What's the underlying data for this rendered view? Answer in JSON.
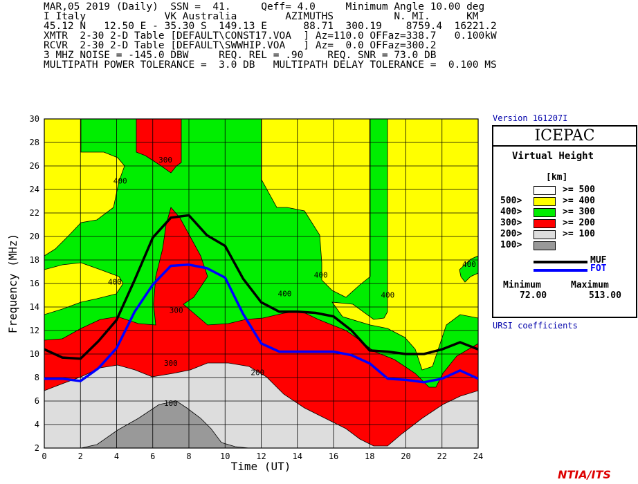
{
  "header": {
    "lines": [
      "MAR,05 2019 (Daily)  SSN =  41.     Qeff= 4.0     Minimum Angle 10.00 deg",
      "I Italy             VK Australia        AZIMUTHS          N. MI.      KM",
      "45.12 N   12.50 E - 35.30 S  149.13 E      88.71  300.19    8759.4  16221.2",
      "XMTR  2-30 2-D Table [DEFAULT\\CONST17.VOA  ] Az=110.0 OFFaz=338.7   0.100kW",
      "RCVR  2-30 2-D Table [DEFAULT\\SWWHIP.VOA   ] Az=  0.0 OFFaz=300.2",
      "3 MHZ NOISE = -145.0 DBW     REQ. REL = .90    REQ. SNR = 73.0 DB",
      "MULTIPATH POWER TOLERANCE =  3.0 DB   MULTIPATH DELAY TOLERANCE =  0.100 MS"
    ]
  },
  "version": "Version 161207I",
  "legend": {
    "title": "ICEPAC",
    "subtitle": "Virtual Height",
    "unit": "[km]",
    "rows": [
      {
        "left": "",
        "right": ">= 500",
        "color": "#ffffff"
      },
      {
        "left": "500>",
        "right": ">= 400",
        "color": "#ffff00"
      },
      {
        "left": "400>",
        "right": ">= 300",
        "color": "#00ee00"
      },
      {
        "left": "300>",
        "right": ">= 200",
        "color": "#ff0000"
      },
      {
        "left": "200>",
        "right": ">= 100",
        "color": "#dddddd"
      },
      {
        "left": "100>",
        "right": "",
        "color": "#999999"
      }
    ],
    "muf_label": "MUF",
    "fot_label": "FOT",
    "min_label": "Minimum",
    "max_label": "Maximum",
    "min_value": "72.00",
    "max_value": "513.00"
  },
  "footer": {
    "ursi": "URSI coefficients",
    "brand": "NTIA/ITS"
  },
  "chart_data": {
    "type": "area",
    "xlabel": "Time (UT)",
    "ylabel": "Frequency (MHz)",
    "xlim": [
      0,
      24
    ],
    "ylim": [
      2,
      30
    ],
    "x_ticks": [
      0,
      2,
      4,
      6,
      8,
      10,
      12,
      14,
      16,
      18,
      20,
      22,
      24
    ],
    "y_ticks": [
      2,
      4,
      6,
      8,
      10,
      12,
      14,
      16,
      18,
      20,
      22,
      24,
      26,
      28,
      30
    ],
    "contour_labels": [
      {
        "text": "400",
        "x": 4.2,
        "y": 24.5
      },
      {
        "text": "300",
        "x": 6.7,
        "y": 26.3
      },
      {
        "text": "400",
        "x": 3.9,
        "y": 15.9
      },
      {
        "text": "300",
        "x": 7.3,
        "y": 13.5
      },
      {
        "text": "300",
        "x": 7.0,
        "y": 9.0
      },
      {
        "text": "400",
        "x": 15.3,
        "y": 16.5
      },
      {
        "text": "400",
        "x": 13.3,
        "y": 14.9
      },
      {
        "text": "400",
        "x": 19.0,
        "y": 14.8
      },
      {
        "text": "400",
        "x": 23.5,
        "y": 17.4
      },
      {
        "text": "200",
        "x": 11.8,
        "y": 8.2
      },
      {
        "text": "100",
        "x": 7.0,
        "y": 5.6
      }
    ],
    "series": [
      {
        "name": "MUF",
        "color": "#000000",
        "x": [
          0,
          1,
          2,
          3,
          4,
          5,
          6,
          7,
          8,
          9,
          10,
          11,
          12,
          13,
          14,
          15,
          16,
          17,
          18,
          19,
          20,
          21,
          22,
          23,
          24
        ],
        "y": [
          10.4,
          9.7,
          9.6,
          11.1,
          12.9,
          16.3,
          19.9,
          21.6,
          21.8,
          20.1,
          19.2,
          16.4,
          14.4,
          13.6,
          13.6,
          13.5,
          13.2,
          12.0,
          10.3,
          10.2,
          10.0,
          10.0,
          10.4,
          11.0,
          10.4
        ]
      },
      {
        "name": "FOT",
        "color": "#0000ff",
        "x": [
          0,
          1,
          2,
          3,
          4,
          5,
          6,
          7,
          8,
          9,
          10,
          11,
          12,
          13,
          14,
          15,
          16,
          17,
          18,
          19,
          20,
          21,
          22,
          23,
          24
        ],
        "y": [
          7.9,
          7.9,
          7.7,
          8.8,
          10.5,
          13.6,
          15.9,
          17.5,
          17.6,
          17.3,
          16.5,
          13.4,
          10.9,
          10.2,
          10.2,
          10.2,
          10.2,
          9.9,
          9.2,
          7.9,
          7.8,
          7.6,
          7.9,
          8.6,
          7.9
        ]
      }
    ]
  }
}
